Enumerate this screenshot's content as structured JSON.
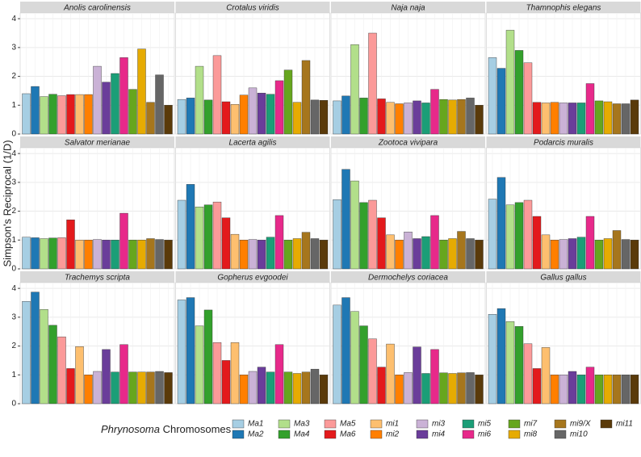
{
  "y_label": "Simpson's Reciprocal (1/D)",
  "ylim": [
    0,
    4.2
  ],
  "yticks": [
    0,
    1,
    2,
    3,
    4
  ],
  "legend": {
    "title_italic": "Phrynosoma",
    "title": "Chromosomes",
    "entries": [
      {
        "name": "Ma1",
        "color": "#a6cee3"
      },
      {
        "name": "Ma2",
        "color": "#1f78b4"
      },
      {
        "name": "Ma3",
        "color": "#b2df8a"
      },
      {
        "name": "Ma4",
        "color": "#33a02c"
      },
      {
        "name": "Ma5",
        "color": "#fb9a99"
      },
      {
        "name": "Ma6",
        "color": "#e31a1c"
      },
      {
        "name": "mi1",
        "color": "#fdbf6f"
      },
      {
        "name": "mi2",
        "color": "#ff7f00"
      },
      {
        "name": "mi3",
        "color": "#cab2d6"
      },
      {
        "name": "mi4",
        "color": "#6a3d9a"
      },
      {
        "name": "mi5",
        "color": "#1b9e77"
      },
      {
        "name": "mi6",
        "color": "#e7298a"
      },
      {
        "name": "mi7",
        "color": "#66a61e"
      },
      {
        "name": "mi8",
        "color": "#e6ab02"
      },
      {
        "name": "mi9/X",
        "color": "#a6761d"
      },
      {
        "name": "mi10",
        "color": "#666666"
      },
      {
        "name": "mi11",
        "color": "#5a3a0a"
      }
    ]
  },
  "chart_data": [
    {
      "type": "bar",
      "title": "Anolis carolinensis",
      "values": [
        1.4,
        1.65,
        1.3,
        1.38,
        1.33,
        1.37,
        1.37,
        1.37,
        2.35,
        1.8,
        2.1,
        2.65,
        1.55,
        2.95,
        1.1,
        2.05,
        1.0
      ]
    },
    {
      "type": "bar",
      "title": "Crotalus viridis",
      "values": [
        1.2,
        1.25,
        2.35,
        1.18,
        2.72,
        1.12,
        1.03,
        1.35,
        1.6,
        1.42,
        1.38,
        1.85,
        2.22,
        1.1,
        2.55,
        1.18,
        1.17
      ]
    },
    {
      "type": "bar",
      "title": "Naja naja",
      "values": [
        1.15,
        1.32,
        3.1,
        1.25,
        3.5,
        1.22,
        1.1,
        1.05,
        1.08,
        1.15,
        1.08,
        1.55,
        1.2,
        1.18,
        1.2,
        1.25,
        1.0
      ]
    },
    {
      "type": "bar",
      "title": "Thamnophis elegans",
      "values": [
        2.65,
        2.28,
        3.6,
        2.9,
        2.47,
        1.1,
        1.08,
        1.1,
        1.08,
        1.08,
        1.08,
        1.75,
        1.15,
        1.12,
        1.05,
        1.05,
        1.18
      ]
    },
    {
      "type": "bar",
      "title": "Salvator merianae",
      "values": [
        1.1,
        1.08,
        1.05,
        1.07,
        1.08,
        1.7,
        1.0,
        1.0,
        1.02,
        1.0,
        1.0,
        1.93,
        1.0,
        1.0,
        1.05,
        1.02,
        1.0
      ]
    },
    {
      "type": "bar",
      "title": "Lacerta agilis",
      "values": [
        2.38,
        2.93,
        2.15,
        2.22,
        2.32,
        1.77,
        1.2,
        1.0,
        1.02,
        1.0,
        1.1,
        1.85,
        1.0,
        1.05,
        1.27,
        1.05,
        1.0
      ]
    },
    {
      "type": "bar",
      "title": "Zootoca vivipara",
      "values": [
        2.4,
        3.45,
        3.05,
        2.3,
        2.38,
        1.77,
        1.18,
        1.0,
        1.28,
        1.05,
        1.12,
        1.85,
        1.0,
        1.05,
        1.3,
        1.05,
        1.0
      ]
    },
    {
      "type": "bar",
      "title": "Podarcis muralis",
      "values": [
        2.42,
        3.17,
        2.22,
        2.3,
        2.38,
        1.82,
        1.18,
        1.0,
        1.02,
        1.05,
        1.1,
        1.82,
        1.0,
        1.05,
        1.33,
        1.02,
        1.0
      ]
    },
    {
      "type": "bar",
      "title": "Trachemys scripta",
      "values": [
        3.55,
        3.87,
        3.27,
        2.72,
        2.32,
        1.22,
        1.98,
        1.0,
        1.12,
        1.88,
        1.1,
        2.05,
        1.1,
        1.1,
        1.1,
        1.12,
        1.08
      ]
    },
    {
      "type": "bar",
      "title": "Gopherus evgoodei",
      "values": [
        3.6,
        3.68,
        2.7,
        3.25,
        2.12,
        1.5,
        2.12,
        1.0,
        1.12,
        1.27,
        1.1,
        2.05,
        1.1,
        1.05,
        1.1,
        1.2,
        1.0
      ]
    },
    {
      "type": "bar",
      "title": "Dermochelys coriacea",
      "values": [
        3.42,
        3.68,
        3.2,
        2.7,
        2.25,
        1.27,
        2.07,
        1.0,
        1.08,
        1.97,
        1.05,
        1.88,
        1.07,
        1.05,
        1.07,
        1.08,
        1.0
      ]
    },
    {
      "type": "bar",
      "title": "Gallus gallus",
      "values": [
        3.1,
        3.3,
        2.85,
        2.68,
        2.08,
        1.22,
        1.95,
        1.0,
        1.0,
        1.12,
        1.0,
        1.27,
        1.0,
        1.0,
        1.0,
        1.0,
        1.0
      ]
    }
  ]
}
